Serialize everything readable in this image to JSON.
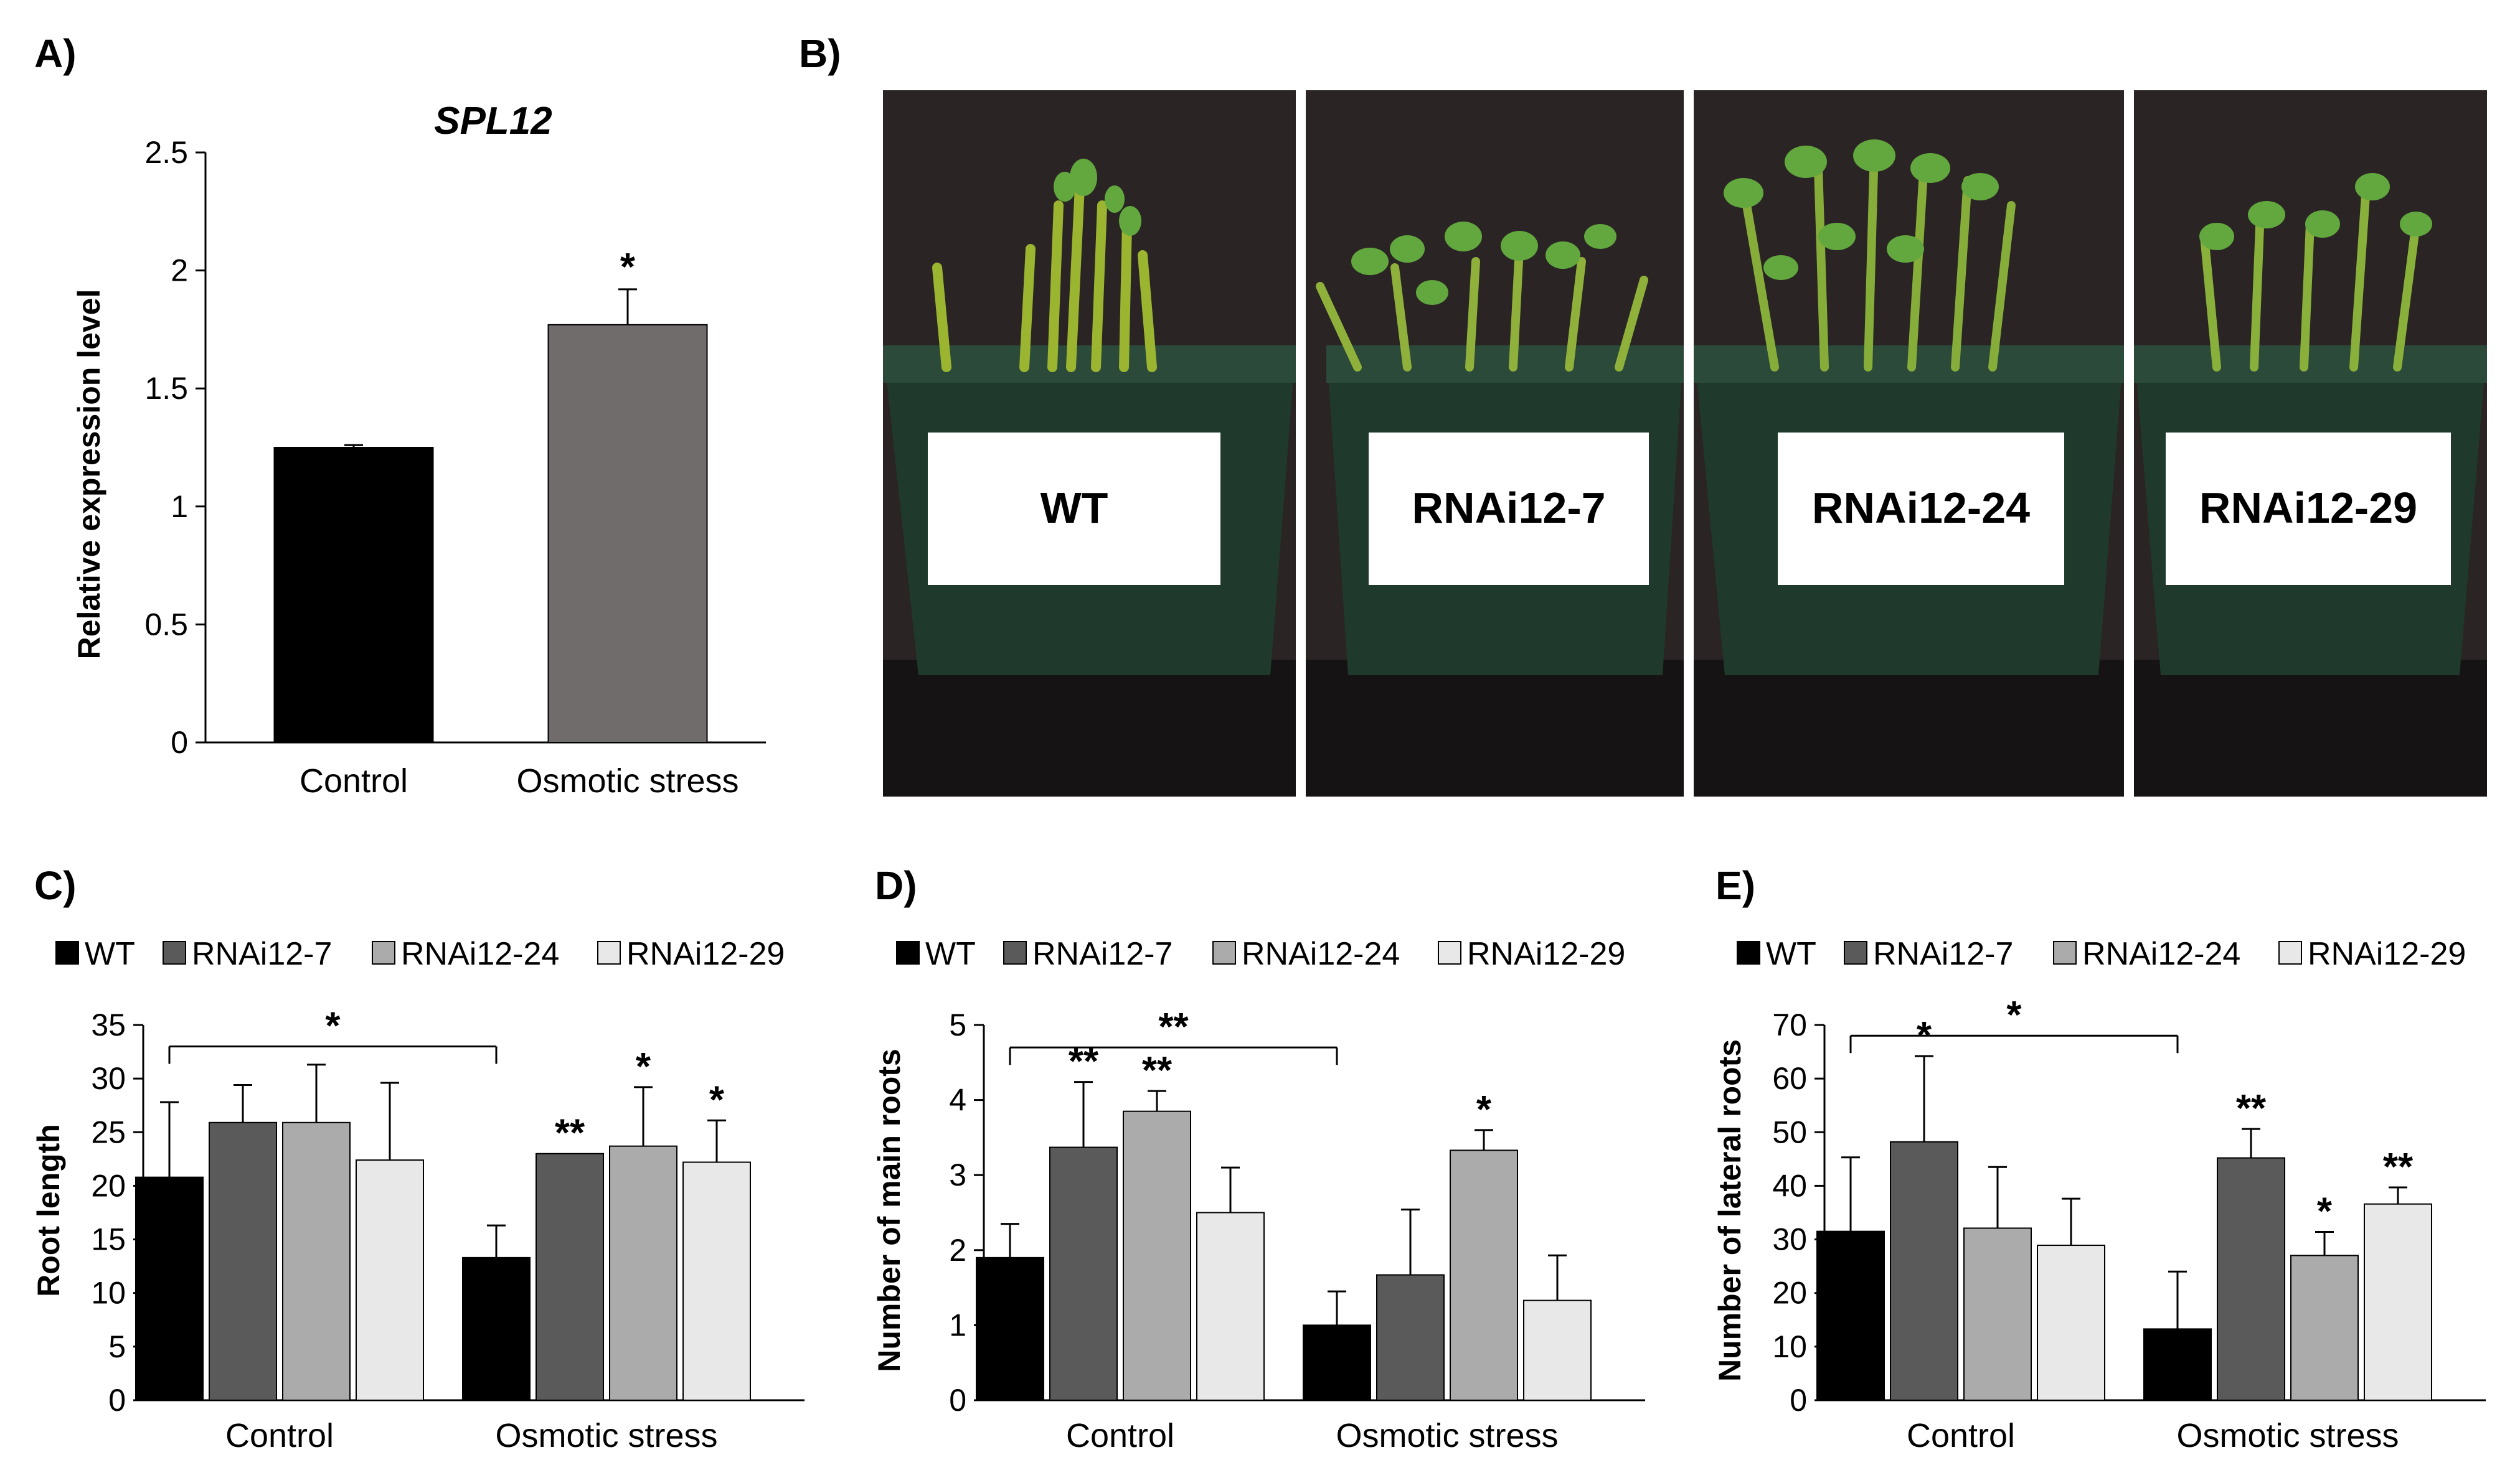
{
  "panels": {
    "A": {
      "letter": "A)"
    },
    "B": {
      "letter": "B)"
    },
    "C": {
      "letter": "C)"
    },
    "D": {
      "letter": "D)"
    },
    "E": {
      "letter": "E)"
    }
  },
  "photo": {
    "labels": [
      "WT",
      "RNAi12-7",
      "RNAi12-24",
      "RNAi12-29"
    ]
  },
  "colors": {
    "WT": "#000000",
    "RNAi12-7": "#5a5a5a",
    "RNAi12-24": "#ababab",
    "RNAi12-29": "#e8e8e8",
    "osmotic_A": "#706c6b",
    "backdrop": "#2a2524",
    "pot": "#1f3a2c"
  },
  "chart_data": [
    {
      "id": "A",
      "type": "bar",
      "title": "SPL12",
      "xlabel": "",
      "ylabel": "Relative expression level",
      "categories": [
        "Control",
        "Osmotic stress"
      ],
      "values": [
        1.25,
        1.77
      ],
      "errors": [
        0.01,
        0.15
      ],
      "significance": [
        "",
        "*"
      ],
      "ylim": [
        0,
        2.5
      ],
      "yticks": [
        "0",
        "0.5",
        "1",
        "1.5",
        "2",
        "2.5"
      ]
    },
    {
      "id": "C",
      "type": "bar",
      "title": "",
      "xlabel": "",
      "ylabel": "Root length",
      "legend": [
        "WT",
        "RNAi12-7",
        "RNAi12-24",
        "RNAi12-29"
      ],
      "categories": [
        "Control",
        "Osmotic stress"
      ],
      "series": [
        {
          "name": "WT",
          "values": [
            20.8,
            13.3
          ],
          "errors": [
            7.0,
            3.0
          ],
          "sig": [
            "",
            ""
          ]
        },
        {
          "name": "RNAi12-7",
          "values": [
            25.9,
            23.0
          ],
          "errors": [
            3.5,
            0
          ],
          "sig": [
            "",
            "**"
          ]
        },
        {
          "name": "RNAi12-24",
          "values": [
            25.9,
            23.7
          ],
          "errors": [
            5.4,
            5.5
          ],
          "sig": [
            "",
            "*"
          ]
        },
        {
          "name": "RNAi12-29",
          "values": [
            22.4,
            22.2
          ],
          "errors": [
            7.2,
            3.9
          ],
          "sig": [
            "",
            "*"
          ]
        }
      ],
      "bracket": {
        "text": "*",
        "value": 33
      },
      "ylim": [
        0,
        35
      ],
      "yticks": [
        "0",
        "5",
        "10",
        "15",
        "20",
        "25",
        "30",
        "35"
      ]
    },
    {
      "id": "D",
      "type": "bar",
      "title": "",
      "xlabel": "",
      "ylabel": "Number of main roots",
      "legend": [
        "WT",
        "RNAi12-7",
        "RNAi12-24",
        "RNAi12-29"
      ],
      "categories": [
        "Control",
        "Osmotic stress"
      ],
      "series": [
        {
          "name": "WT",
          "values": [
            1.9,
            1.0
          ],
          "errors": [
            0.45,
            0.45
          ],
          "sig": [
            "",
            ""
          ]
        },
        {
          "name": "RNAi12-7",
          "values": [
            3.37,
            1.67
          ],
          "errors": [
            0.87,
            0.87
          ],
          "sig": [
            "**",
            ""
          ]
        },
        {
          "name": "RNAi12-24",
          "values": [
            3.85,
            3.33
          ],
          "errors": [
            0.27,
            0.27
          ],
          "sig": [
            "**",
            "*"
          ]
        },
        {
          "name": "RNAi12-29",
          "values": [
            2.5,
            1.33
          ],
          "errors": [
            0.6,
            0.6
          ],
          "sig": [
            "",
            ""
          ]
        }
      ],
      "bracket": {
        "text": "**",
        "value": 4.7
      },
      "ylim": [
        0,
        5
      ],
      "yticks": [
        "0",
        "1",
        "2",
        "3",
        "4",
        "5"
      ]
    },
    {
      "id": "E",
      "type": "bar",
      "title": "",
      "xlabel": "",
      "ylabel": "Number of lateral roots",
      "legend": [
        "WT",
        "RNAi12-7",
        "RNAi12-24",
        "RNAi12-29"
      ],
      "categories": [
        "Control",
        "Osmotic stress"
      ],
      "series": [
        {
          "name": "WT",
          "values": [
            31.5,
            13.3
          ],
          "errors": [
            13.8,
            10.7
          ],
          "sig": [
            "",
            ""
          ]
        },
        {
          "name": "RNAi12-7",
          "values": [
            48.2,
            45.2
          ],
          "errors": [
            16.0,
            5.4
          ],
          "sig": [
            "*",
            "**"
          ]
        },
        {
          "name": "RNAi12-24",
          "values": [
            32.1,
            27.0
          ],
          "errors": [
            11.4,
            4.4
          ],
          "sig": [
            "",
            "*"
          ]
        },
        {
          "name": "RNAi12-29",
          "values": [
            28.9,
            36.6
          ],
          "errors": [
            8.7,
            3.1
          ],
          "sig": [
            "",
            "**"
          ]
        }
      ],
      "bracket": {
        "text": "*",
        "value": 68
      },
      "ylim": [
        0,
        70
      ],
      "yticks": [
        "0",
        "10",
        "20",
        "30",
        "40",
        "50",
        "60",
        "70"
      ]
    }
  ]
}
